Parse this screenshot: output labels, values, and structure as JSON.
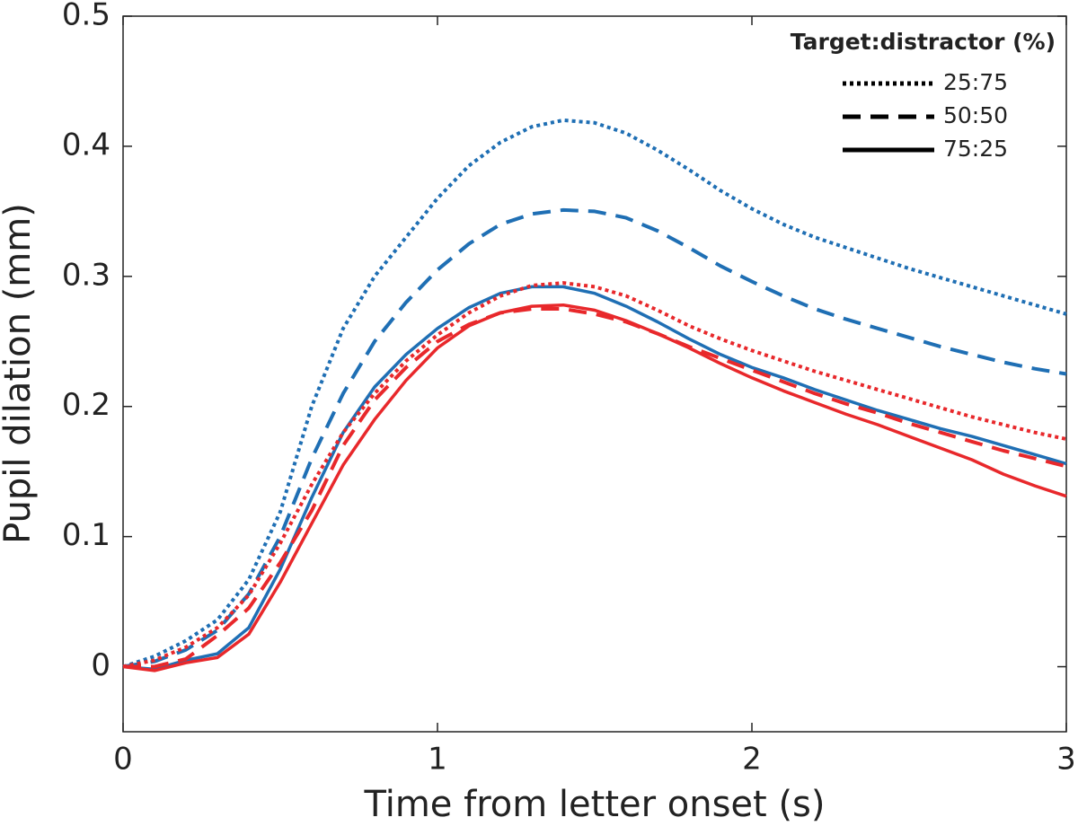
{
  "chart_data": {
    "type": "line",
    "x_label": "Time from letter onset (s)",
    "y_label": "Pupil dilation (mm)",
    "x": [
      0,
      0.1,
      0.2,
      0.3,
      0.4,
      0.5,
      0.6,
      0.7,
      0.8,
      0.9,
      1,
      1.1,
      1.2,
      1.3,
      1.4,
      1.5,
      1.6,
      1.7,
      1.8,
      1.9,
      2,
      2.1,
      2.2,
      2.3,
      2.4,
      2.5,
      2.6,
      2.7,
      2.8,
      2.9,
      3
    ],
    "series": [
      {
        "color": "#1f6fb4",
        "dash": "dotted",
        "values": [
          0,
          0.008,
          0.02,
          0.036,
          0.067,
          0.119,
          0.2,
          0.26,
          0.3,
          0.33,
          0.36,
          0.385,
          0.403,
          0.415,
          0.42,
          0.418,
          0.41,
          0.397,
          0.382,
          0.366,
          0.352,
          0.34,
          0.33,
          0.322,
          0.314,
          0.306,
          0.299,
          0.292,
          0.285,
          0.278,
          0.271
        ]
      },
      {
        "color": "#1f6fb4",
        "dash": "dashed",
        "values": [
          0,
          0.004,
          0.013,
          0.028,
          0.056,
          0.1,
          0.16,
          0.21,
          0.25,
          0.28,
          0.305,
          0.325,
          0.34,
          0.348,
          0.351,
          0.35,
          0.345,
          0.335,
          0.322,
          0.308,
          0.296,
          0.285,
          0.275,
          0.267,
          0.26,
          0.253,
          0.246,
          0.24,
          0.234,
          0.229,
          0.225
        ]
      },
      {
        "color": "#1f6fb4",
        "dash": "solid",
        "values": [
          0,
          -0.002,
          0.005,
          0.01,
          0.03,
          0.075,
          0.13,
          0.18,
          0.215,
          0.24,
          0.26,
          0.276,
          0.287,
          0.292,
          0.292,
          0.287,
          0.277,
          0.265,
          0.252,
          0.24,
          0.23,
          0.222,
          0.213,
          0.205,
          0.197,
          0.19,
          0.183,
          0.177,
          0.17,
          0.163,
          0.156
        ]
      },
      {
        "color": "#e8282b",
        "dash": "dotted",
        "values": [
          0,
          0.005,
          0.015,
          0.03,
          0.055,
          0.095,
          0.14,
          0.18,
          0.21,
          0.235,
          0.255,
          0.272,
          0.285,
          0.293,
          0.295,
          0.292,
          0.285,
          0.274,
          0.262,
          0.252,
          0.243,
          0.235,
          0.227,
          0.22,
          0.213,
          0.206,
          0.199,
          0.192,
          0.186,
          0.18,
          0.175
        ]
      },
      {
        "color": "#e8282b",
        "dash": "dashed",
        "values": [
          0,
          0,
          0.006,
          0.024,
          0.045,
          0.08,
          0.12,
          0.17,
          0.205,
          0.23,
          0.25,
          0.263,
          0.272,
          0.275,
          0.275,
          0.271,
          0.265,
          0.256,
          0.246,
          0.237,
          0.228,
          0.219,
          0.21,
          0.202,
          0.195,
          0.187,
          0.18,
          0.173,
          0.166,
          0.16,
          0.154
        ]
      },
      {
        "color": "#e8282b",
        "dash": "solid",
        "values": [
          0,
          -0.003,
          0.003,
          0.007,
          0.025,
          0.065,
          0.11,
          0.155,
          0.19,
          0.22,
          0.245,
          0.262,
          0.272,
          0.277,
          0.278,
          0.274,
          0.266,
          0.256,
          0.245,
          0.233,
          0.222,
          0.212,
          0.203,
          0.194,
          0.186,
          0.177,
          0.168,
          0.159,
          0.148,
          0.139,
          0.131
        ]
      }
    ],
    "legend": {
      "title": "Target:distractor (%)",
      "position": "top-right",
      "entries": [
        {
          "label": "25:75",
          "dash": "dotted"
        },
        {
          "label": "50:50",
          "dash": "dashed"
        },
        {
          "label": "75:25",
          "dash": "solid"
        }
      ]
    },
    "xlim": [
      0,
      3
    ],
    "xticks": [
      0,
      1,
      2,
      3
    ],
    "ylim": [
      -0.05,
      0.5
    ],
    "yticks": [
      0,
      0.1,
      0.2,
      0.3,
      0.4,
      0.5
    ]
  }
}
